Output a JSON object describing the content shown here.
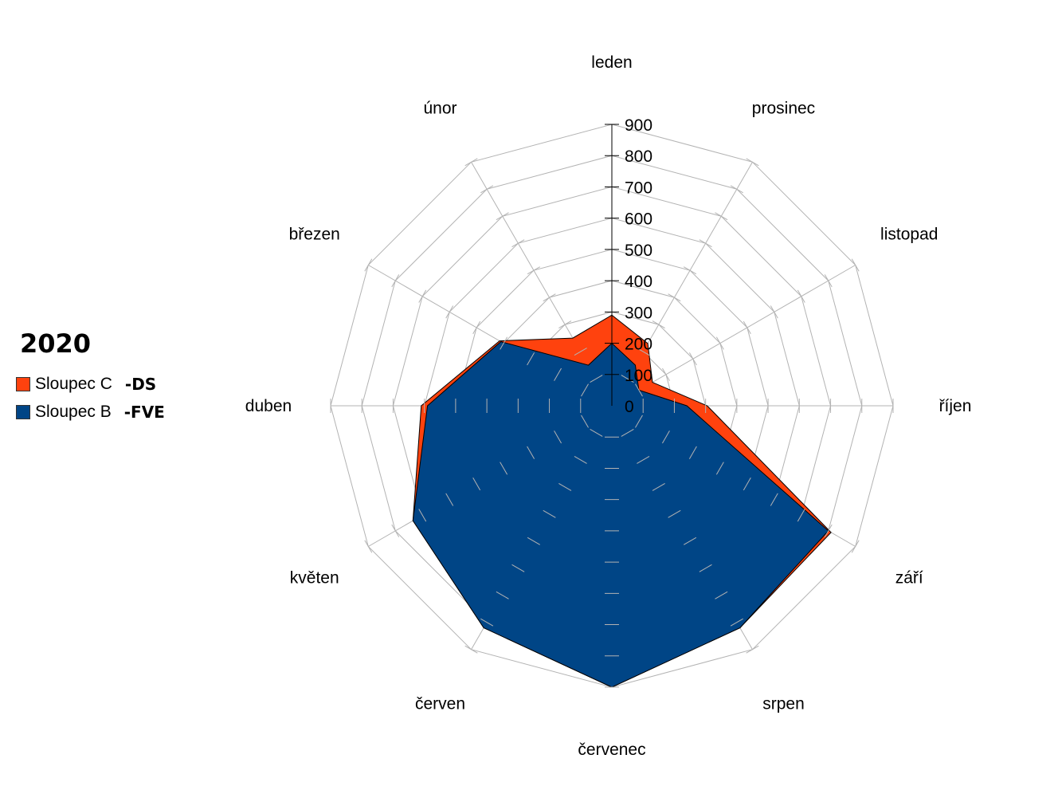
{
  "chart_data": {
    "type": "radar",
    "title": "2020",
    "categories": [
      "leden",
      "prosinec",
      "listopad",
      "říjen",
      "září",
      "srpen",
      "červenec",
      "červen",
      "květen",
      "duben",
      "březen",
      "únor"
    ],
    "rmax": 900,
    "ticks": [
      "0",
      "100",
      "200",
      "300",
      "400",
      "500",
      "600",
      "700",
      "800",
      "900"
    ],
    "series": [
      {
        "name": "Sloupec C",
        "suffix": "-DS",
        "color": "#ff420e",
        "values": [
          290,
          230,
          150,
          305,
          810,
          820,
          900,
          820,
          735,
          610,
          415,
          250
        ]
      },
      {
        "name": "Sloupec B",
        "suffix": "-FVE",
        "color": "#004586",
        "values": [
          200,
          150,
          100,
          240,
          800,
          820,
          900,
          820,
          735,
          590,
          410,
          150
        ]
      }
    ]
  }
}
